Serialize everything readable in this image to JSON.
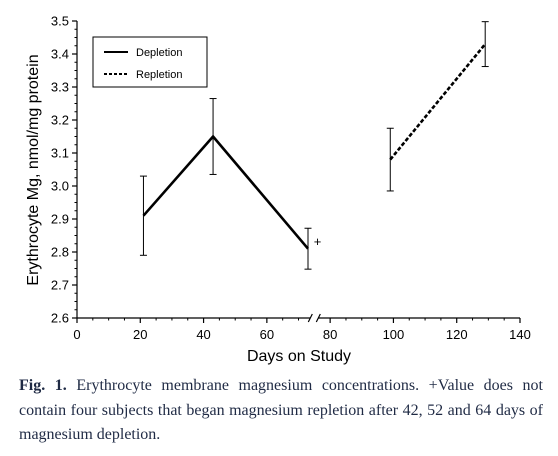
{
  "chart_data": {
    "type": "line",
    "xlabel": "Days on Study",
    "ylabel": "Erythrocyte Mg, nmol/mg protein",
    "xlim": [
      0,
      140
    ],
    "ylim": [
      2.6,
      3.5
    ],
    "x_ticks": [
      "0",
      "20",
      "40",
      "60",
      "80",
      "100",
      "120",
      "140"
    ],
    "y_ticks": [
      "2.6",
      "2.7",
      "2.8",
      "2.9",
      "3.0",
      "3.1",
      "3.2",
      "3.3",
      "3.4",
      "3.5"
    ],
    "axis_break_x": 75,
    "grid": false,
    "legend_position": "top-left",
    "series": [
      {
        "name": "Depletion",
        "line_style": "solid",
        "x": [
          21,
          43,
          73
        ],
        "y": [
          2.91,
          3.15,
          2.81
        ],
        "error": [
          0.12,
          0.115,
          0.062
        ]
      },
      {
        "name": "Repletion",
        "line_style": "dashed",
        "x": [
          99,
          129
        ],
        "y": [
          3.08,
          3.43
        ],
        "error": [
          0.095,
          0.068
        ]
      }
    ],
    "annotations": [
      {
        "text": "+",
        "x": 76,
        "y": 2.83
      }
    ]
  },
  "caption": {
    "fig_label": "Fig. 1.",
    "text": " Erythrocyte membrane magnesium concentrations. +Value does not contain four subjects that began magnesium repletion after 42, 52 and 64 days of magnesium depletion."
  }
}
